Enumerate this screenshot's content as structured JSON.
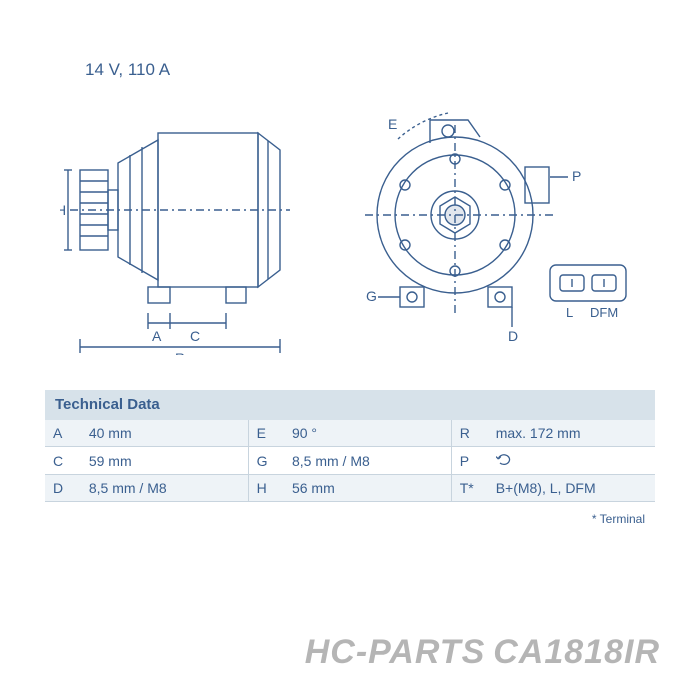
{
  "rating": "14 V, 110 A",
  "diagram": {
    "stroke": "#3a5f8f",
    "stroke_width": 1.4,
    "label_font_size": 14,
    "label_color": "#3a5f8f",
    "dim_labels": [
      "A",
      "C",
      "R",
      "H",
      "E",
      "P",
      "G",
      "D"
    ],
    "connector_labels": [
      "L",
      "DFM"
    ]
  },
  "tech_header": "Technical Data",
  "table": {
    "header_bg": "#d7e2ea",
    "row_odd_bg": "#eef3f7",
    "row_even_bg": "#ffffff",
    "text_color": "#3a5f8f",
    "border_color": "#c8d4de",
    "font_size": 14,
    "rows": [
      [
        {
          "k": "A",
          "v": "40 mm"
        },
        {
          "k": "E",
          "v": "90 °"
        },
        {
          "k": "R",
          "v": "max. 172 mm"
        }
      ],
      [
        {
          "k": "C",
          "v": "59 mm"
        },
        {
          "k": "G",
          "v": "8,5 mm / M8"
        },
        {
          "k": "P",
          "v": "__ROT__"
        }
      ],
      [
        {
          "k": "D",
          "v": "8,5 mm / M8"
        },
        {
          "k": "H",
          "v": "56 mm"
        },
        {
          "k": "T*",
          "v": "B+(M8), L, DFM"
        }
      ]
    ]
  },
  "footnote": "* Terminal",
  "watermark": {
    "brand": "HC-PARTS",
    "part": "CA1818IR"
  }
}
